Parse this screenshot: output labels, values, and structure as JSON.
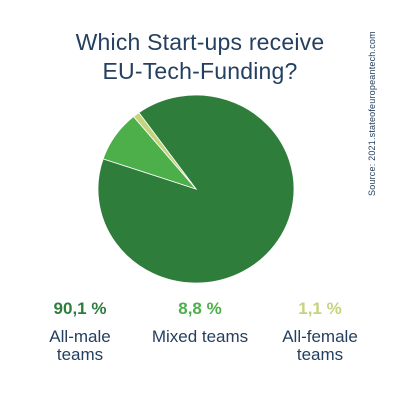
{
  "title_lines": [
    "Which Start-ups receive",
    "EU-Tech-Funding?"
  ],
  "source": "Source: 2021.stateofeuropeantech.com",
  "chart_data": {
    "type": "pie",
    "title": "Which Start-ups receive EU-Tech-Funding?",
    "slices": [
      {
        "value": 90.1,
        "label": "90,1 %",
        "name_lines": [
          "All-male",
          "teams"
        ],
        "color": "#2e7d3b"
      },
      {
        "value": 8.8,
        "label": "8,8 %",
        "name_lines": [
          "Mixed teams"
        ],
        "color": "#4caf4a"
      },
      {
        "value": 1.1,
        "label": "1,1 %",
        "name_lines": [
          "All-female",
          "teams"
        ],
        "color": "#c4d47c"
      }
    ]
  }
}
